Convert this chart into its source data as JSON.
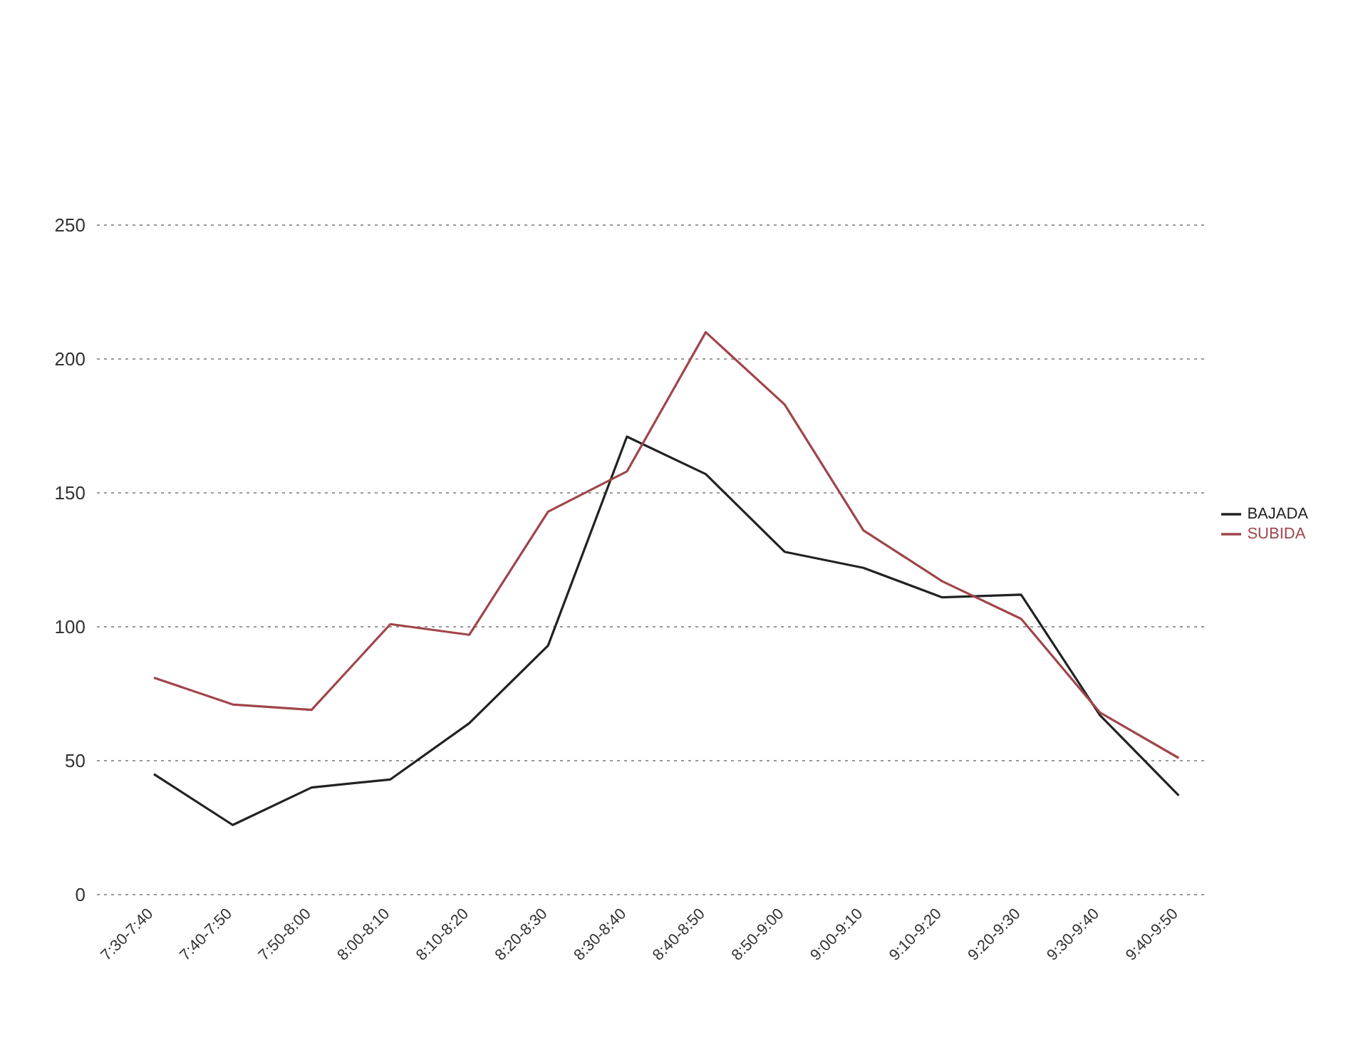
{
  "chart_data": {
    "type": "line",
    "categories": [
      "7:30-7:40",
      "7:40-7:50",
      "7:50-8:00",
      "8:00-8:10",
      "8:10-8:20",
      "8:20-8:30",
      "8:30-8:40",
      "8:40-8:50",
      "8:50-9:00",
      "9:00-9:10",
      "9:10-9:20",
      "9:20-9:30",
      "9:30-9:40",
      "9:40-9:50"
    ],
    "series": [
      {
        "name": "BAJADA",
        "color": "#222222",
        "values": [
          45,
          26,
          40,
          43,
          64,
          93,
          171,
          157,
          128,
          122,
          111,
          112,
          67,
          37
        ]
      },
      {
        "name": "SUBIDA",
        "color": "#a0454a",
        "values": [
          81,
          71,
          69,
          101,
          97,
          143,
          158,
          210,
          183,
          136,
          117,
          103,
          68,
          51
        ]
      }
    ],
    "ylim": [
      0,
      250
    ],
    "yticks": [
      0,
      50,
      100,
      150,
      200,
      250
    ],
    "grid": "y",
    "legend": "right",
    "marker": "none",
    "line_style": "solid"
  }
}
